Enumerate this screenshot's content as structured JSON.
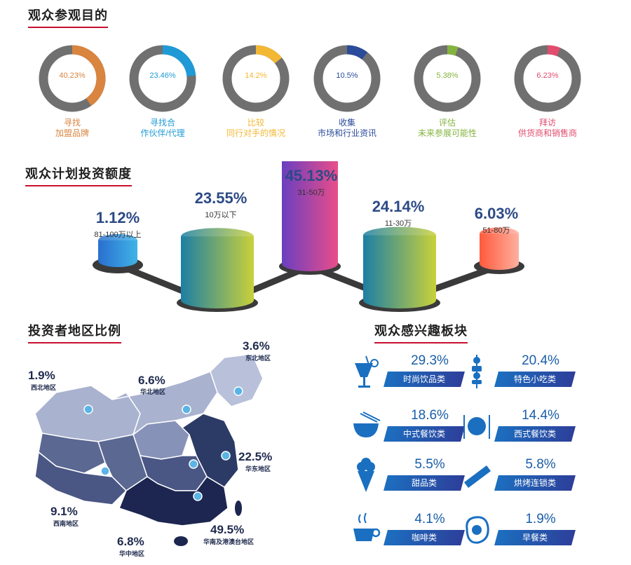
{
  "purpose": {
    "title": "观众参观目的",
    "items": [
      {
        "pct": "40.23%",
        "value": 40.23,
        "label1": "寻找",
        "label2": "加盟品牌",
        "color": "#d9843f"
      },
      {
        "pct": "23.46%",
        "value": 23.46,
        "label1": "寻找合",
        "label2": "作伙伴/代理",
        "color": "#1f9ad6"
      },
      {
        "pct": "14.2%",
        "value": 14.2,
        "label1": "比较",
        "label2": "同行对手的情况",
        "color": "#f3b833"
      },
      {
        "pct": "10.5%",
        "value": 10.5,
        "label1": "收集",
        "label2": "市场和行业资讯",
        "color": "#2b4b9b"
      },
      {
        "pct": "5.38%",
        "value": 5.38,
        "label1": "评估",
        "label2": "未来参展可能性",
        "color": "#84b33f"
      },
      {
        "pct": "6.23%",
        "value": 6.23,
        "label1": "拜访",
        "label2": "供货商和销售商",
        "color": "#e24c6e"
      }
    ]
  },
  "investment": {
    "title": "观众计划投资额度",
    "items": [
      {
        "pct": "1.12%",
        "sub": "81-100万以上",
        "value": 1.12
      },
      {
        "pct": "23.55%",
        "sub": "10万以下",
        "value": 23.55
      },
      {
        "pct": "45.13%",
        "sub": "31-50万",
        "value": 45.13
      },
      {
        "pct": "24.14%",
        "sub": "11-30万",
        "value": 24.14
      },
      {
        "pct": "6.03%",
        "sub": "51-80万",
        "value": 6.03
      }
    ]
  },
  "regions": {
    "title": "投资者地区比例",
    "items": [
      {
        "pct": "1.9%",
        "name": "西北地区"
      },
      {
        "pct": "6.6%",
        "name": "华北地区"
      },
      {
        "pct": "3.6%",
        "name": "东北地区"
      },
      {
        "pct": "22.5%",
        "name": "华东地区"
      },
      {
        "pct": "9.1%",
        "name": "西南地区"
      },
      {
        "pct": "6.8%",
        "name": "华中地区"
      },
      {
        "pct": "49.5%",
        "name": "华南及港澳台地区"
      }
    ]
  },
  "interests": {
    "title": "观众感兴趣板块",
    "items": [
      {
        "pct": "29.3%",
        "label": "时尚饮品类",
        "icon": "drink-icon"
      },
      {
        "pct": "20.4%",
        "label": "特色小吃类",
        "icon": "skewer-icon"
      },
      {
        "pct": "18.6%",
        "label": "中式餐饮类",
        "icon": "bowl-icon"
      },
      {
        "pct": "14.4%",
        "label": "西式餐饮类",
        "icon": "plate-icon"
      },
      {
        "pct": "5.5%",
        "label": "甜品类",
        "icon": "icecream-icon"
      },
      {
        "pct": "5.8%",
        "label": "烘烤连锁类",
        "icon": "sandwich-icon"
      },
      {
        "pct": "4.1%",
        "label": "咖啡类",
        "icon": "coffee-icon"
      },
      {
        "pct": "1.9%",
        "label": "早餐类",
        "icon": "egg-icon"
      }
    ]
  }
}
